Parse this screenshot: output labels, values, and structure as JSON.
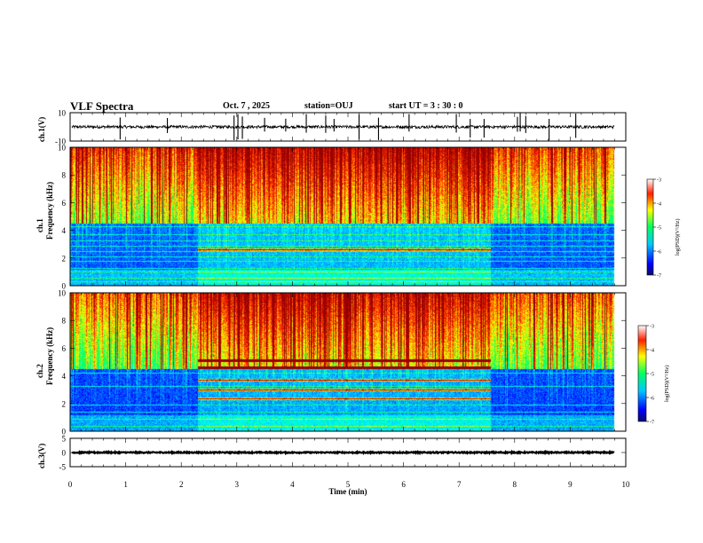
{
  "header": {
    "title": "VLF Spectra",
    "date": "Oct. 7 , 2025",
    "station": "station=OUJ",
    "start_ut": "start UT =  3 : 30 : 0"
  },
  "colors": {
    "colormap": [
      "#7a0a0a",
      "#ff0000",
      "#ffff00",
      "#00ff00",
      "#00ffff",
      "#0000ff",
      "#0a0a6e"
    ],
    "trace": "#000000",
    "background": "#ffffff"
  },
  "chart_data": [
    {
      "id": "ch1-waveform",
      "type": "line",
      "ylabel": "ch.1(V)",
      "ylim": [
        -10,
        10
      ],
      "y_ticks": [
        "10",
        "-10"
      ],
      "baseline": 0,
      "noise_amplitude": 2,
      "spikes_min": [
        0.9,
        1.75,
        2.95,
        3.02,
        3.1,
        3.5,
        3.88,
        4.25,
        4.6,
        4.75,
        5.2,
        5.55,
        6.1,
        6.95,
        7.2,
        7.45,
        8.05,
        8.1,
        8.2,
        8.62,
        9.1
      ]
    },
    {
      "id": "ch1-spectrogram",
      "type": "heatmap",
      "ylabel": "ch.1\nFrequency (kHz)",
      "xlim_min": [
        0,
        9.8
      ],
      "ylim_khz": [
        0,
        10
      ],
      "y_ticks": [
        "0",
        "2",
        "4",
        "6",
        "8",
        "10"
      ],
      "colorbar": {
        "label": "log(PSD)(V²/Hz)",
        "range": [
          -7,
          -3
        ],
        "ticks": [
          "-3",
          "-4",
          "-5",
          "-6",
          "-7"
        ]
      },
      "features": {
        "noise_floor_log_psd": -6.2,
        "sferic_band_khz": [
          5,
          10
        ],
        "emission_start_min": 2.3,
        "emission_end_min": 7.55,
        "emission_lines_khz": [
          2.6
        ],
        "horizontal_lines_khz": [
          0.3,
          0.6,
          1.0,
          1.3,
          1.8,
          2.1,
          2.5,
          2.9,
          3.3,
          3.7,
          4.3
        ]
      }
    },
    {
      "id": "ch2-spectrogram",
      "type": "heatmap",
      "ylabel": "ch.2\nFrequency (kHz)",
      "xlim_min": [
        0,
        9.8
      ],
      "ylim_khz": [
        0,
        10
      ],
      "y_ticks": [
        "0",
        "2",
        "4",
        "6",
        "8",
        "10"
      ],
      "colorbar": {
        "label": "log(PSD)(V²/Hz)",
        "range": [
          -7,
          -3
        ],
        "ticks": [
          "-3",
          "-4",
          "-5",
          "-6",
          "-7"
        ]
      },
      "features": {
        "noise_floor_log_psd": -6.3,
        "sferic_band_khz": [
          5,
          10
        ],
        "emission_start_min": 2.3,
        "emission_end_min": 7.55,
        "emission_lines_khz": [
          2.4,
          3.0,
          3.7,
          4.6,
          5.1
        ],
        "horizontal_lines_khz": [
          0.4,
          0.9,
          1.4,
          1.9,
          3.3,
          4.2
        ]
      }
    },
    {
      "id": "ch3-waveform",
      "type": "line",
      "ylabel": "ch.3(V)",
      "ylim": [
        -5,
        5
      ],
      "y_ticks": [
        "5",
        "0",
        "-5"
      ],
      "baseline": 0,
      "noise_amplitude": 0.4,
      "spikes_min": []
    }
  ],
  "x_axis": {
    "label": "Time (min)",
    "range": [
      0,
      10
    ],
    "ticks": [
      "0",
      "1",
      "2",
      "3",
      "4",
      "5",
      "6",
      "7",
      "8",
      "9",
      "10"
    ]
  }
}
